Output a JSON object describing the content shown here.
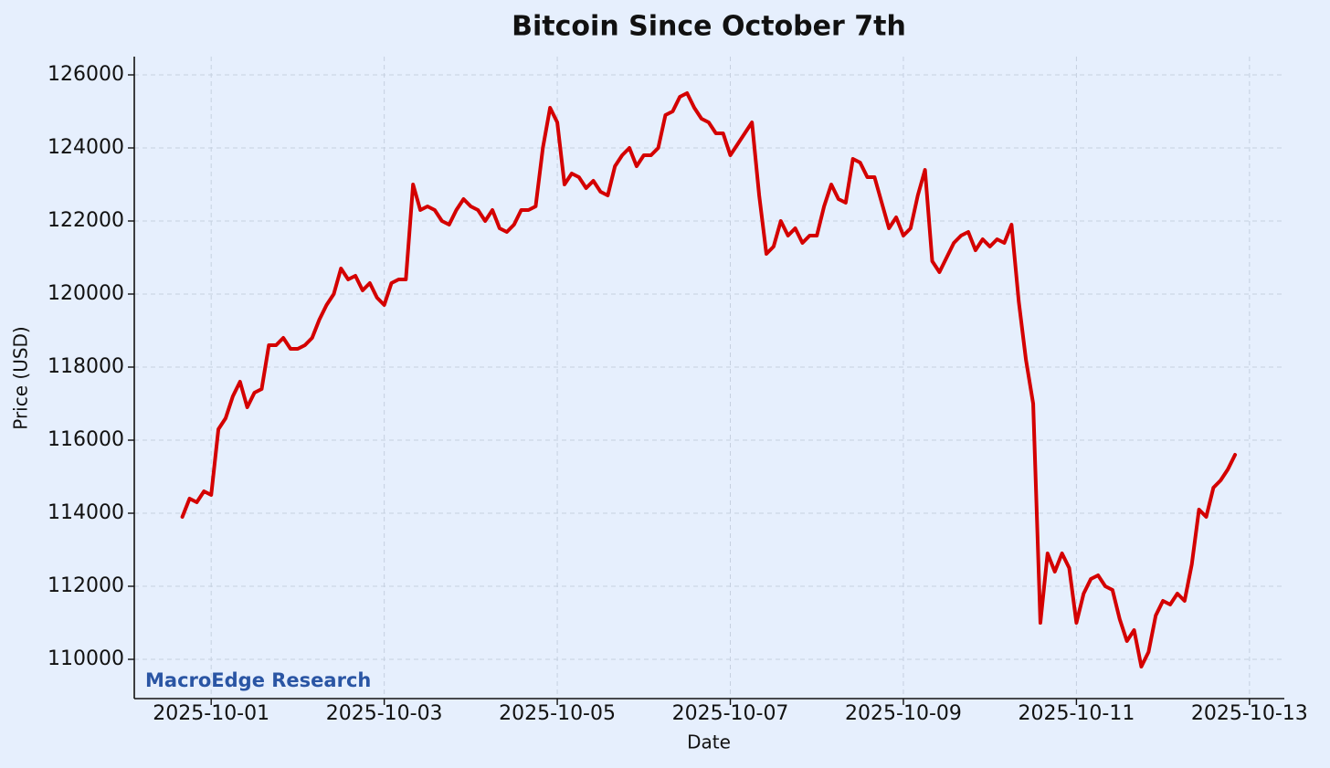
{
  "chart_data": {
    "type": "line",
    "title": "Bitcoin Since October 7th",
    "xlabel": "Date",
    "ylabel": "Price (USD)",
    "watermark": "MacroEdge Research",
    "color": "#d40000",
    "grid": true,
    "xlim": [
      "2025-09-30T02:40",
      "2025-10-13T09:40"
    ],
    "xticks": [
      "2025-10-01",
      "2025-10-03",
      "2025-10-05",
      "2025-10-07",
      "2025-10-09",
      "2025-10-11",
      "2025-10-13"
    ],
    "ylim": [
      108925,
      126500
    ],
    "yticks": [
      110000,
      112000,
      114000,
      116000,
      118000,
      120000,
      122000,
      124000,
      126000
    ],
    "x": [
      "2025-09-30T16:00",
      "2025-09-30T18:00",
      "2025-09-30T20:00",
      "2025-09-30T22:00",
      "2025-10-01T00:00",
      "2025-10-01T02:00",
      "2025-10-01T04:00",
      "2025-10-01T06:00",
      "2025-10-01T08:00",
      "2025-10-01T10:00",
      "2025-10-01T12:00",
      "2025-10-01T14:00",
      "2025-10-01T16:00",
      "2025-10-01T18:00",
      "2025-10-01T20:00",
      "2025-10-01T22:00",
      "2025-10-02T00:00",
      "2025-10-02T02:00",
      "2025-10-02T04:00",
      "2025-10-02T06:00",
      "2025-10-02T08:00",
      "2025-10-02T10:00",
      "2025-10-02T12:00",
      "2025-10-02T14:00",
      "2025-10-02T16:00",
      "2025-10-02T18:00",
      "2025-10-02T20:00",
      "2025-10-02T22:00",
      "2025-10-03T00:00",
      "2025-10-03T02:00",
      "2025-10-03T04:00",
      "2025-10-03T06:00",
      "2025-10-03T08:00",
      "2025-10-03T10:00",
      "2025-10-03T12:00",
      "2025-10-03T14:00",
      "2025-10-03T16:00",
      "2025-10-03T18:00",
      "2025-10-03T20:00",
      "2025-10-03T22:00",
      "2025-10-04T00:00",
      "2025-10-04T02:00",
      "2025-10-04T04:00",
      "2025-10-04T06:00",
      "2025-10-04T08:00",
      "2025-10-04T10:00",
      "2025-10-04T12:00",
      "2025-10-04T14:00",
      "2025-10-04T16:00",
      "2025-10-04T18:00",
      "2025-10-04T20:00",
      "2025-10-04T22:00",
      "2025-10-05T00:00",
      "2025-10-05T02:00",
      "2025-10-05T04:00",
      "2025-10-05T06:00",
      "2025-10-05T08:00",
      "2025-10-05T10:00",
      "2025-10-05T12:00",
      "2025-10-05T14:00",
      "2025-10-05T16:00",
      "2025-10-05T18:00",
      "2025-10-05T20:00",
      "2025-10-05T22:00",
      "2025-10-06T00:00",
      "2025-10-06T02:00",
      "2025-10-06T04:00",
      "2025-10-06T06:00",
      "2025-10-06T08:00",
      "2025-10-06T10:00",
      "2025-10-06T12:00",
      "2025-10-06T14:00",
      "2025-10-06T16:00",
      "2025-10-06T18:00",
      "2025-10-06T20:00",
      "2025-10-06T22:00",
      "2025-10-07T00:00",
      "2025-10-07T02:00",
      "2025-10-07T04:00",
      "2025-10-07T06:00",
      "2025-10-07T08:00",
      "2025-10-07T10:00",
      "2025-10-07T12:00",
      "2025-10-07T14:00",
      "2025-10-07T16:00",
      "2025-10-07T18:00",
      "2025-10-07T20:00",
      "2025-10-07T22:00",
      "2025-10-08T00:00",
      "2025-10-08T02:00",
      "2025-10-08T04:00",
      "2025-10-08T06:00",
      "2025-10-08T08:00",
      "2025-10-08T10:00",
      "2025-10-08T12:00",
      "2025-10-08T14:00",
      "2025-10-08T16:00",
      "2025-10-08T18:00",
      "2025-10-08T20:00",
      "2025-10-08T22:00",
      "2025-10-09T00:00",
      "2025-10-09T02:00",
      "2025-10-09T04:00",
      "2025-10-09T06:00",
      "2025-10-09T08:00",
      "2025-10-09T10:00",
      "2025-10-09T12:00",
      "2025-10-09T14:00",
      "2025-10-09T16:00",
      "2025-10-09T18:00",
      "2025-10-09T20:00",
      "2025-10-09T22:00",
      "2025-10-10T00:00",
      "2025-10-10T02:00",
      "2025-10-10T04:00",
      "2025-10-10T06:00",
      "2025-10-10T08:00",
      "2025-10-10T10:00",
      "2025-10-10T12:00",
      "2025-10-10T14:00",
      "2025-10-10T16:00",
      "2025-10-10T18:00",
      "2025-10-10T20:00",
      "2025-10-10T22:00",
      "2025-10-11T00:00",
      "2025-10-11T02:00",
      "2025-10-11T04:00",
      "2025-10-11T06:00",
      "2025-10-11T08:00",
      "2025-10-11T10:00",
      "2025-10-11T12:00",
      "2025-10-11T14:00",
      "2025-10-11T16:00",
      "2025-10-11T18:00",
      "2025-10-11T20:00",
      "2025-10-11T22:00",
      "2025-10-12T00:00",
      "2025-10-12T02:00",
      "2025-10-12T04:00",
      "2025-10-12T06:00",
      "2025-10-12T08:00",
      "2025-10-12T10:00",
      "2025-10-12T12:00",
      "2025-10-12T14:00",
      "2025-10-12T16:00",
      "2025-10-12T18:00",
      "2025-10-12T20:00"
    ],
    "values": [
      113900,
      114400,
      114300,
      114600,
      114500,
      116300,
      116600,
      117200,
      117600,
      116900,
      117300,
      117400,
      118600,
      118600,
      118800,
      118500,
      118500,
      118600,
      118800,
      119300,
      119700,
      120000,
      120700,
      120400,
      120500,
      120100,
      120300,
      119900,
      119700,
      120300,
      120400,
      120400,
      123000,
      122300,
      122400,
      122300,
      122000,
      121900,
      122300,
      122600,
      122400,
      122300,
      122000,
      122300,
      121800,
      121700,
      121900,
      122300,
      122300,
      122400,
      124000,
      125100,
      124700,
      123000,
      123300,
      123200,
      122900,
      123100,
      122800,
      122700,
      123500,
      123800,
      124000,
      123500,
      123800,
      123800,
      124000,
      124900,
      125000,
      125400,
      125500,
      125100,
      124800,
      124700,
      124400,
      124400,
      123800,
      124100,
      124400,
      124700,
      122700,
      121100,
      121300,
      122000,
      121600,
      121800,
      121400,
      121600,
      121600,
      122400,
      123000,
      122600,
      122500,
      123700,
      123600,
      123200,
      123200,
      122500,
      121800,
      122100,
      121600,
      121800,
      122700,
      123400,
      120900,
      120600,
      121000,
      121400,
      121600,
      121700,
      121200,
      121500,
      121300,
      121500,
      121400,
      121900,
      119800,
      118200,
      117000,
      111000,
      112900,
      112400,
      112900,
      112500,
      111000,
      111800,
      112200,
      112300,
      112000,
      111900,
      111100,
      110500,
      110800,
      109800,
      110200,
      111200,
      111600,
      111500,
      111800,
      111600,
      112600,
      114100,
      113900,
      114700,
      114900,
      115200,
      115600
    ]
  }
}
